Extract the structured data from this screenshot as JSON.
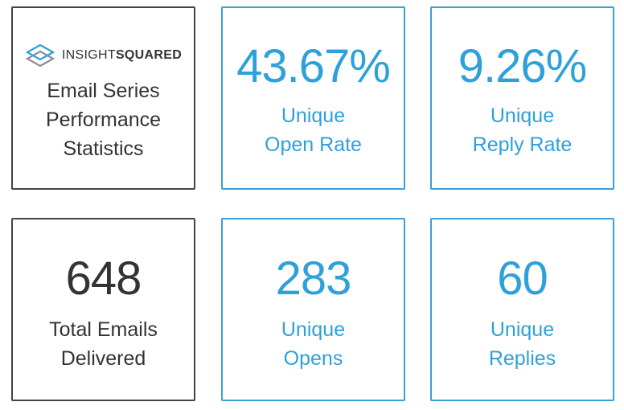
{
  "brand": {
    "logo_icon": "layered-diamond-icon",
    "logo_light": "INSIGHT",
    "logo_bold": "SQUARED",
    "title_lines": [
      "Email Series",
      "Performance",
      "Statistics"
    ]
  },
  "stats": {
    "open_rate": {
      "value": "43.67%",
      "label_lines": [
        "Unique",
        "Open Rate"
      ]
    },
    "reply_rate": {
      "value": "9.26%",
      "label_lines": [
        "Unique",
        "Reply Rate"
      ]
    },
    "total": {
      "value": "648",
      "label_lines": [
        "Total Emails",
        "Delivered"
      ]
    },
    "opens": {
      "value": "283",
      "label_lines": [
        "Unique",
        "Opens"
      ]
    },
    "replies": {
      "value": "60",
      "label_lines": [
        "Unique",
        "Replies"
      ]
    }
  },
  "colors": {
    "accent": "#2ea0da",
    "dark_text": "#333333",
    "dark_border": "#444444"
  }
}
